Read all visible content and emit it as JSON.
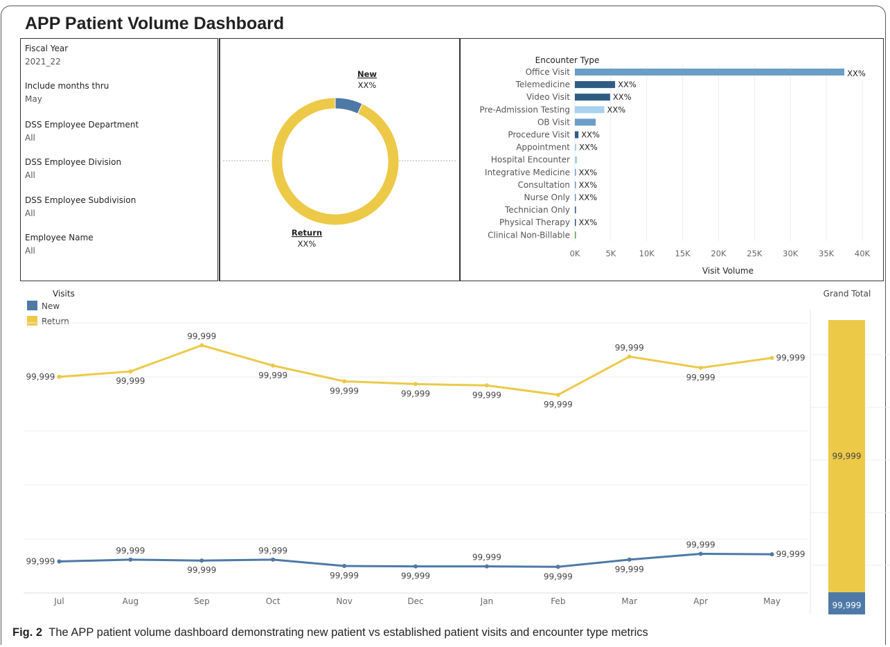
{
  "dashboard": {
    "title": "APP Patient Volume Dashboard"
  },
  "filters": [
    {
      "label": "Fiscal Year",
      "value": "2021_22"
    },
    {
      "label": "Include months thru",
      "value": "May"
    },
    {
      "label": "DSS Employee Department",
      "value": "All"
    },
    {
      "label": "DSS Employee Division",
      "value": "All"
    },
    {
      "label": "DSS Employee Subdivision",
      "value": "All"
    },
    {
      "label": "Employee Name",
      "value": "All"
    }
  ],
  "colors": {
    "new": "#4e79a7",
    "return": "#edc948",
    "bar_dark": "#2f5c85",
    "bar_mid": "#6a9ec9",
    "bar_light": "#a8d1ec",
    "bar_green": "#59a14f"
  },
  "chart_data": [
    {
      "type": "pie",
      "categories": [
        "New",
        "Return"
      ],
      "values": [
        7,
        93
      ],
      "labels": {
        "new_name": "New",
        "new_value": "XX%",
        "return_name": "Return",
        "return_value": "XX%"
      }
    },
    {
      "type": "bar",
      "ylabel": "Encounter Type",
      "xlabel": "Visit Volume",
      "xlim": [
        0,
        40000
      ],
      "ticks": [
        "0K",
        "5K",
        "10K",
        "15K",
        "20K",
        "25K",
        "30K",
        "35K",
        "40K"
      ],
      "categories": [
        "Office Visit",
        "Telemedicine",
        "Video Visit",
        "Pre-Admission Testing",
        "OB Visit",
        "Procedure Visit",
        "Appointment",
        "Hospital Encounter",
        "Integrative Medicine",
        "Consultation",
        "Nurse Only",
        "Technician Only",
        "Physical Therapy",
        "Clinical Non-Billable"
      ],
      "values": [
        37500,
        5600,
        4900,
        4100,
        2900,
        500,
        200,
        300,
        150,
        150,
        150,
        150,
        150,
        100
      ],
      "labels": [
        "XX%",
        "XX%",
        "XX%",
        "XX%",
        "",
        "XX%",
        "XX%",
        "",
        "XX%",
        "XX%",
        "XX%",
        "",
        "XX%",
        ""
      ],
      "shades": [
        "mid",
        "dark",
        "dark",
        "light",
        "mid",
        "dark",
        "light",
        "light",
        "mid",
        "mid",
        "mid",
        "dark",
        "dark",
        "green"
      ]
    },
    {
      "type": "line",
      "legend_title": "Visits",
      "categories": [
        "Jul",
        "Aug",
        "Sep",
        "Oct",
        "Nov",
        "Dec",
        "Jan",
        "Feb",
        "Mar",
        "Apr",
        "May"
      ],
      "series": [
        {
          "name": "New",
          "values": [
            7.0,
            7.4,
            7.2,
            7.4,
            6.0,
            5.9,
            5.9,
            5.8,
            7.4,
            8.7,
            8.6
          ],
          "labels": [
            "99,999",
            "99,999",
            "99,999",
            "99,999",
            "99,999",
            "99,999",
            "99,999",
            "99,999",
            "99,999",
            "99,999",
            "99,999"
          ]
        },
        {
          "name": "Return",
          "values": [
            48.0,
            49.2,
            55.0,
            50.5,
            47.0,
            46.4,
            46.1,
            44.0,
            52.5,
            50.0,
            52.2
          ],
          "labels": [
            "99,999",
            "99,999",
            "99,999",
            "99,999",
            "99,999",
            "99,999",
            "99,999",
            "99,999",
            "99,999",
            "99,999",
            "99,999"
          ]
        }
      ],
      "ylim": [
        0,
        60
      ]
    },
    {
      "type": "bar",
      "title": "Grand Total",
      "categories": [
        "Grand Total"
      ],
      "series": [
        {
          "name": "New",
          "values": [
            1
          ],
          "label": "99,999"
        },
        {
          "name": "Return",
          "values": [
            10.3
          ],
          "label": "99,999"
        }
      ]
    }
  ],
  "caption": {
    "prefix": "Fig. 2",
    "text": "The APP patient volume dashboard demonstrating new patient vs established patient visits and encounter type metrics"
  }
}
